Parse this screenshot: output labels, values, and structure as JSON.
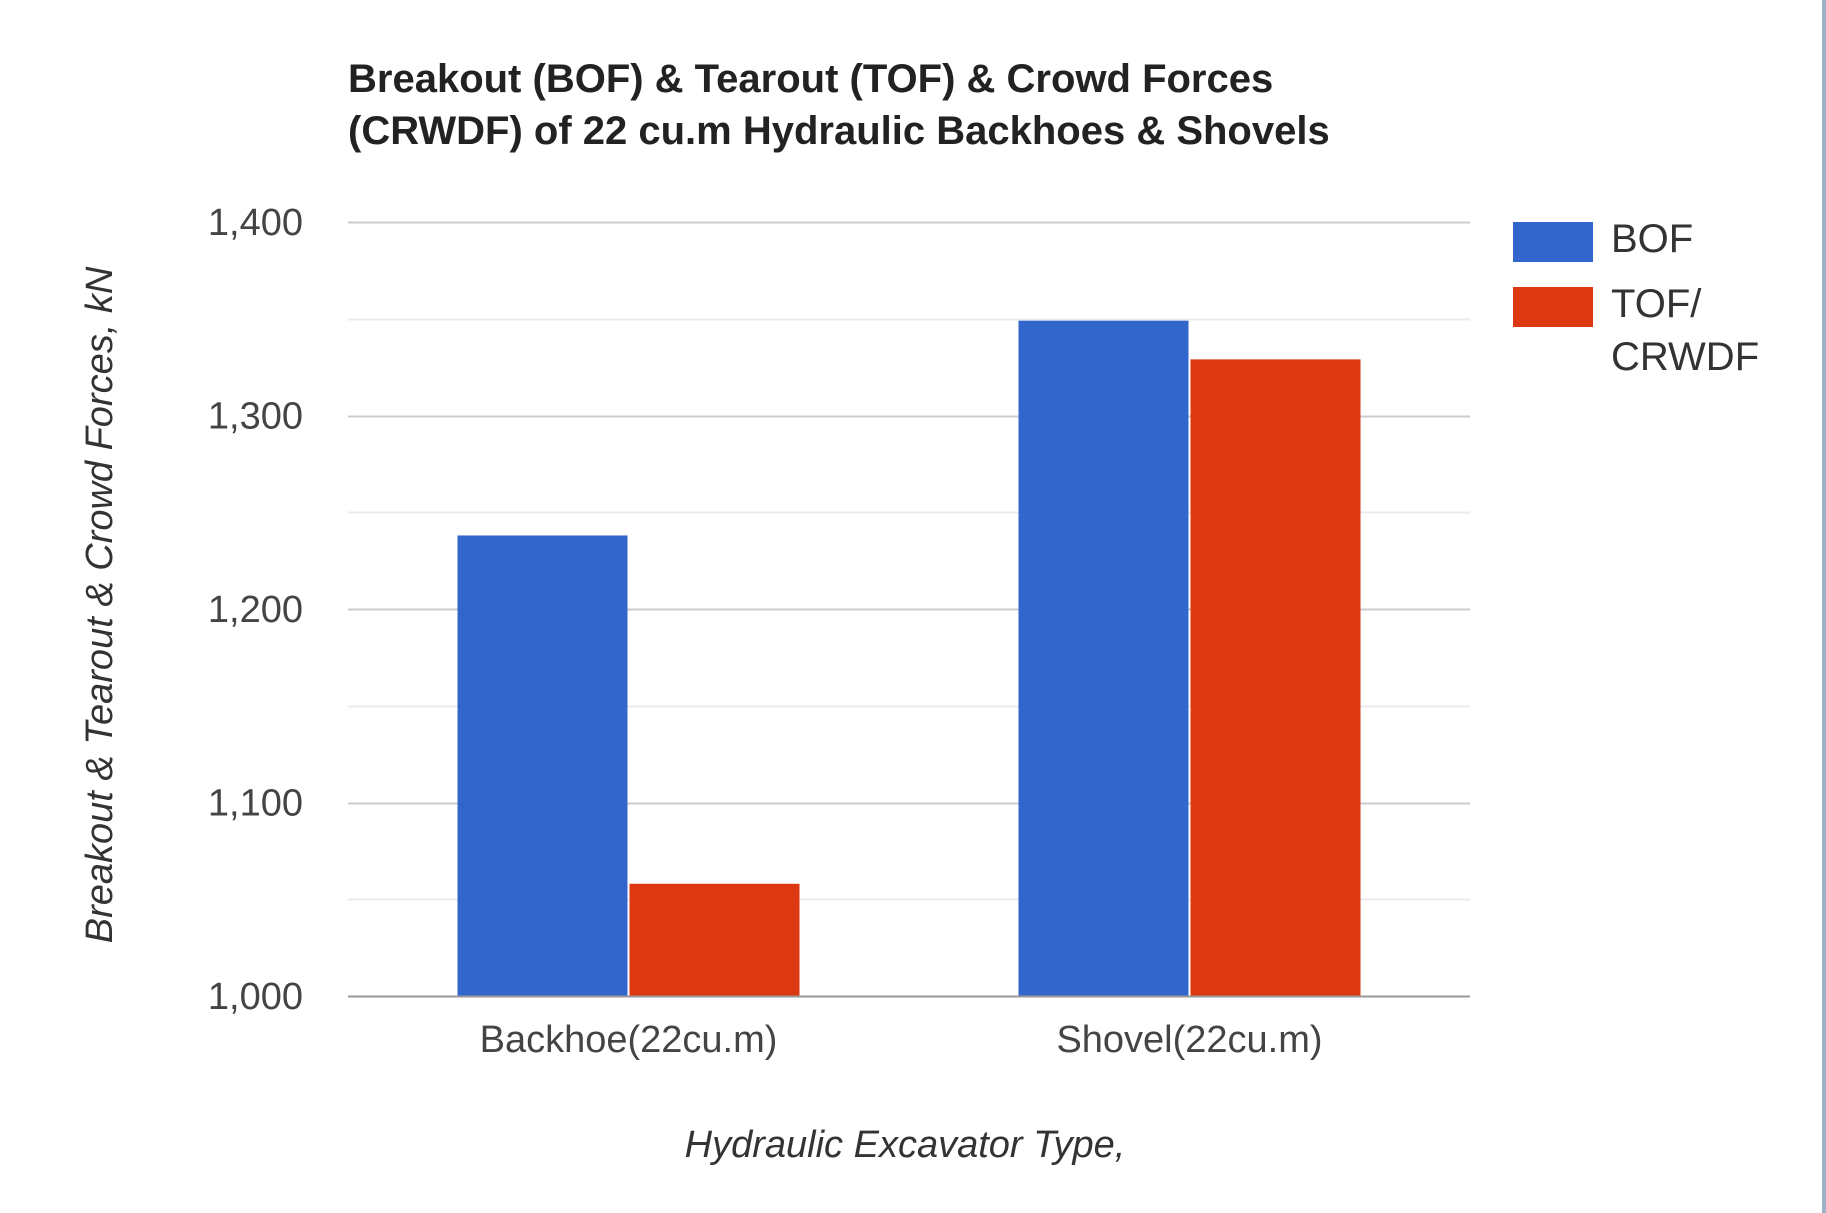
{
  "chart_data": {
    "type": "bar",
    "title_lines": [
      "Breakout (BOF) & Tearout (TOF) & Crowd Forces",
      "(CRWDF) of 22 cu.m  Hydraulic Backhoes & Shovels"
    ],
    "xlabel": "Hydraulic Excavator Type,",
    "ylabel": "Breakout & Tearout & Crowd Forces, kN",
    "categories": [
      "Backhoe(22cu.m)",
      "Shovel(22cu.m)"
    ],
    "series": [
      {
        "name": "BOF",
        "color": "#3366cc",
        "values": [
          1238,
          1349
        ]
      },
      {
        "name_lines": [
          "TOF/",
          "CRWDF"
        ],
        "color": "#dc3912",
        "values": [
          1058,
          1329
        ]
      }
    ],
    "ylim": [
      1000,
      1400
    ],
    "yticks": [
      1000,
      1100,
      1200,
      1300,
      1400
    ],
    "ytick_labels": [
      "1,000",
      "1,100",
      "1,200",
      "1,300",
      "1,400"
    ],
    "minor_gridlines": [
      1050,
      1150,
      1250,
      1350
    ],
    "grid": true,
    "legend_position": "right",
    "gridline_color": "#cccccc",
    "minor_gridline_color": "#ebebeb"
  }
}
